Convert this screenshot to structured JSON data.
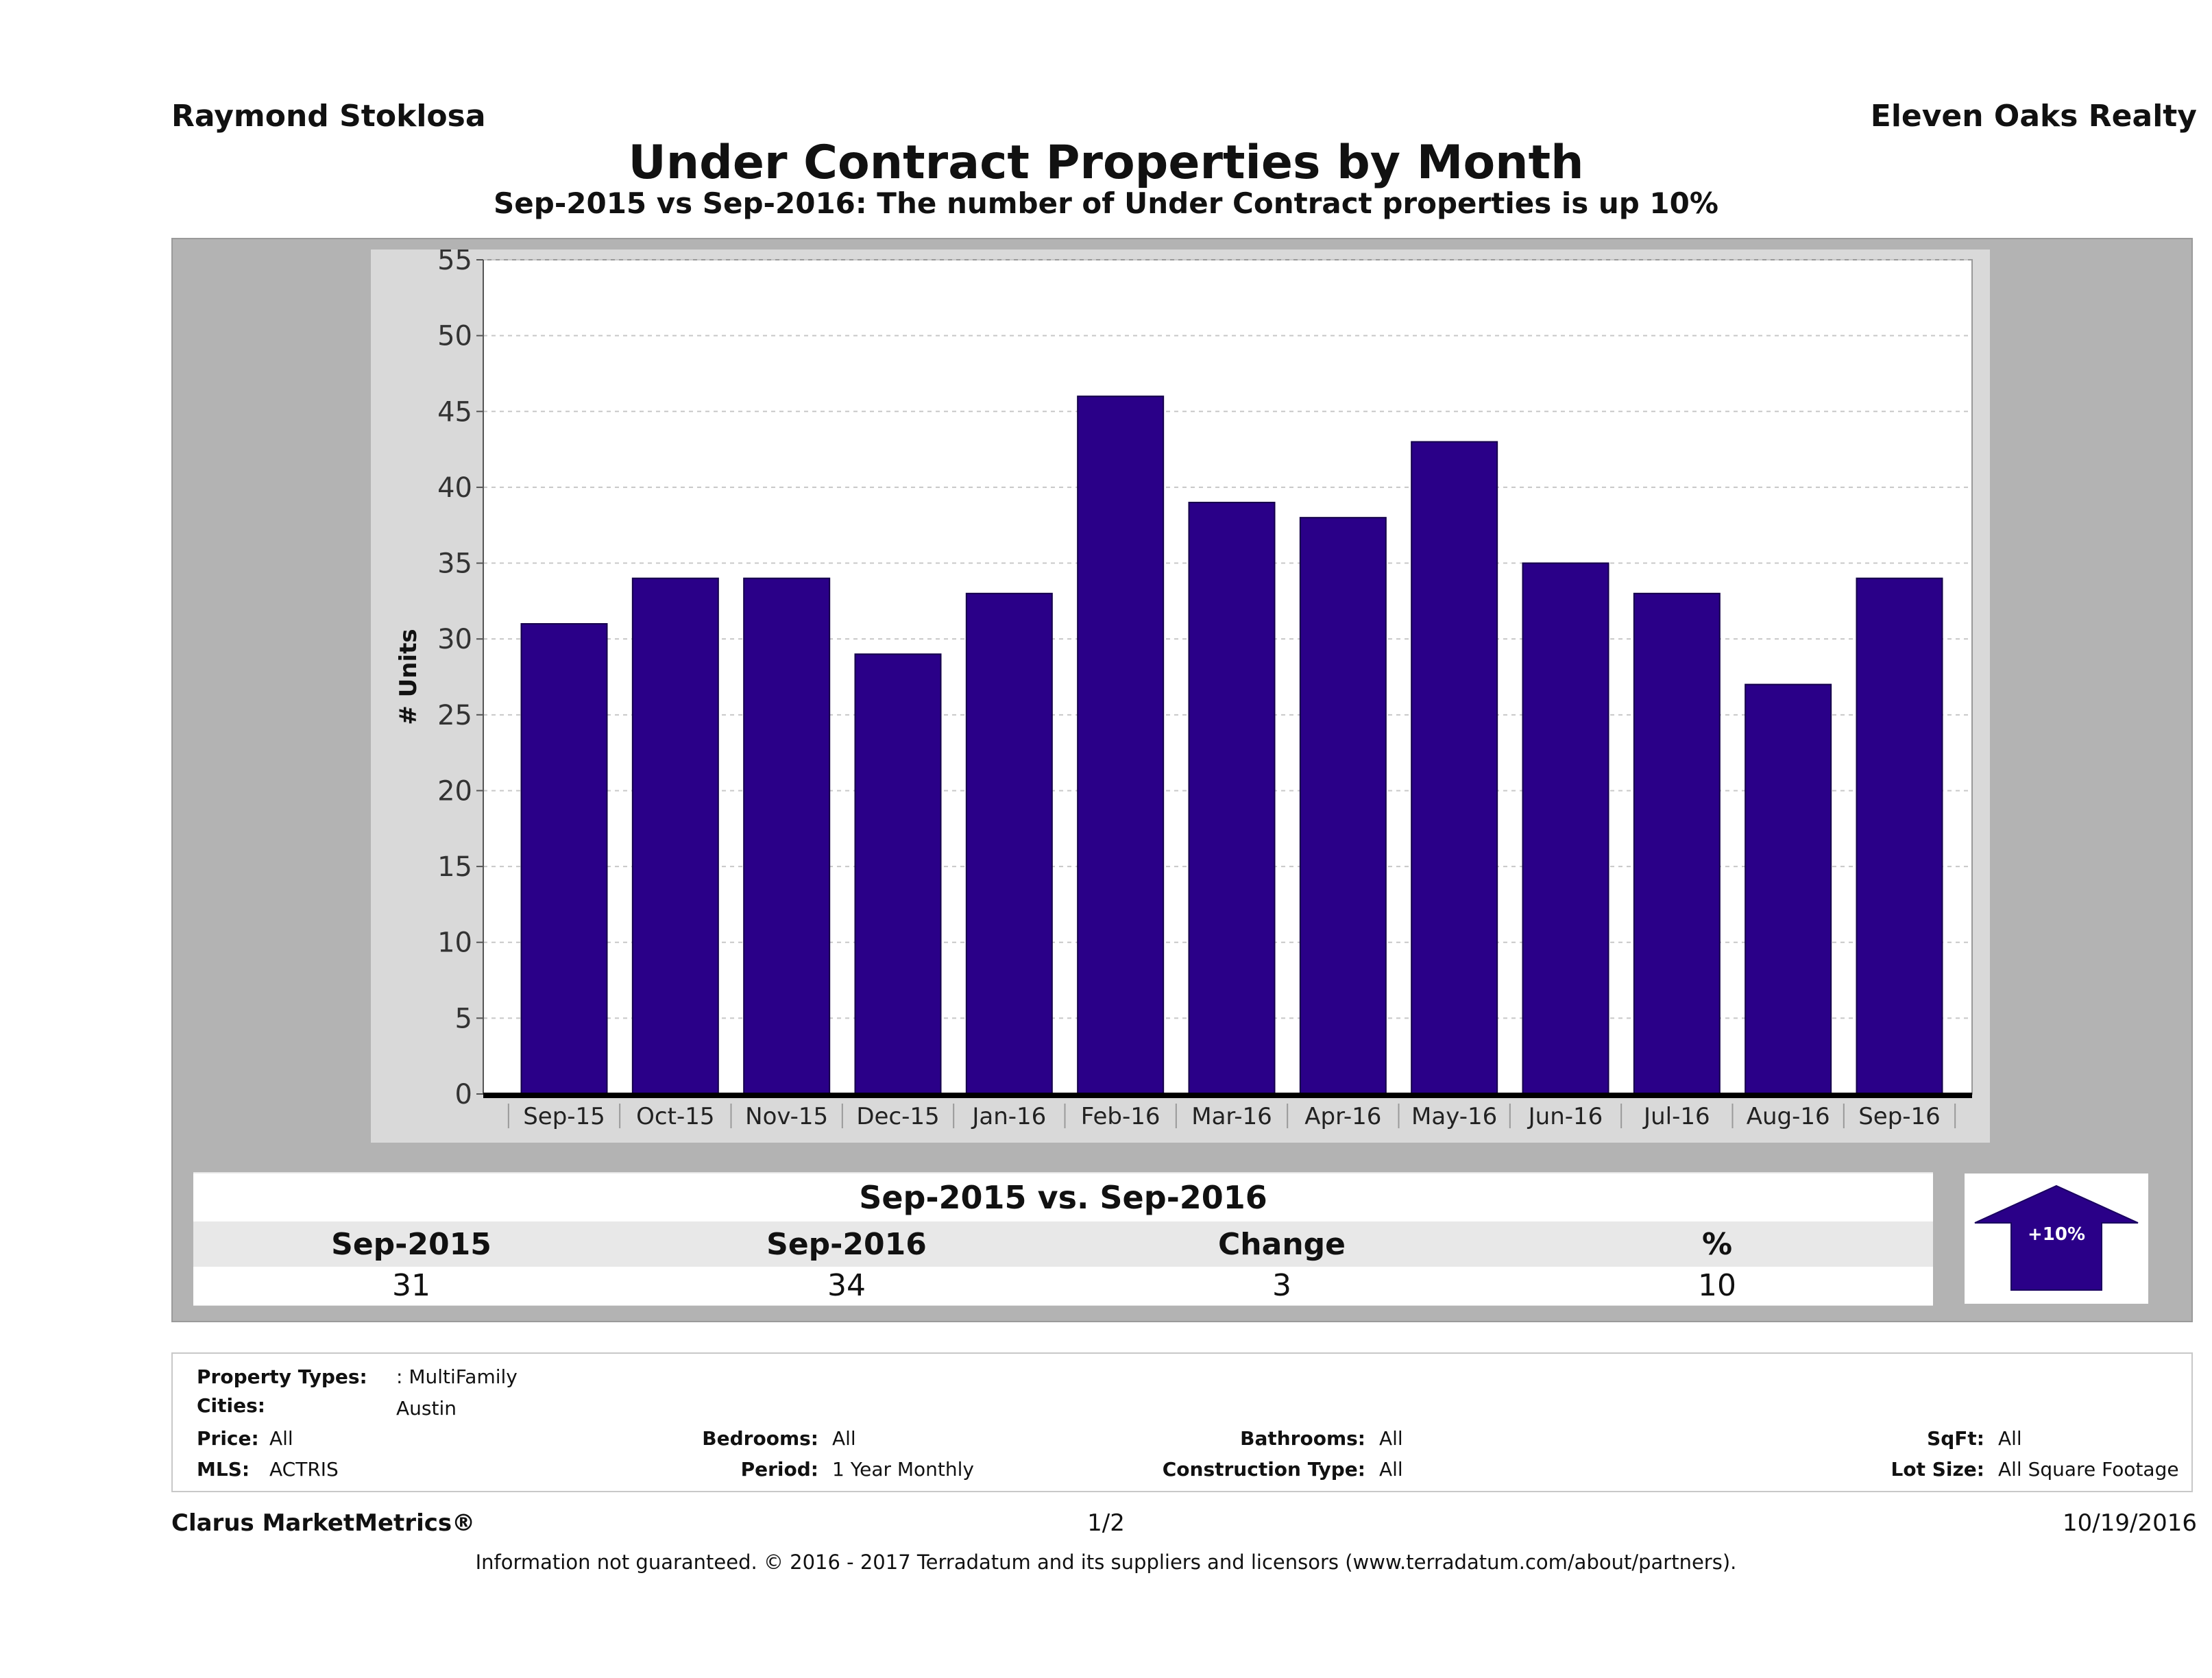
{
  "header": {
    "agent": "Raymond Stoklosa",
    "company": "Eleven Oaks Realty",
    "title": "Under Contract Properties by Month",
    "subtitle": "Sep-2015 vs Sep-2016: The number of Under Contract  properties is up 10%"
  },
  "chart_data": {
    "type": "bar",
    "title": "Under Contract Properties by Month",
    "ylabel": "# Units",
    "xlabel": "",
    "ylim": [
      0,
      55
    ],
    "yticks": [
      0,
      5,
      10,
      15,
      20,
      25,
      30,
      35,
      40,
      45,
      50,
      55
    ],
    "grid": true,
    "bar_color": "#2a0088",
    "categories": [
      "Sep-15",
      "Oct-15",
      "Nov-15",
      "Dec-15",
      "Jan-16",
      "Feb-16",
      "Mar-16",
      "Apr-16",
      "May-16",
      "Jun-16",
      "Jul-16",
      "Aug-16",
      "Sep-16"
    ],
    "values": [
      31,
      34,
      34,
      29,
      33,
      46,
      39,
      38,
      43,
      35,
      33,
      27,
      34
    ]
  },
  "comparison": {
    "title": "Sep-2015 vs. Sep-2016",
    "headers": [
      "Sep-2015",
      "Sep-2016",
      "Change",
      "%"
    ],
    "values": [
      "31",
      "34",
      "3",
      "10"
    ],
    "badge": "+10%",
    "badge_color": "#2a0088"
  },
  "filters": {
    "property_types_label": "Property Types:",
    "property_types_value": ": MultiFamily",
    "cities_label": "Cities:",
    "cities_value": "Austin",
    "price_label": "Price:",
    "price_value": "All",
    "mls_label": "MLS:",
    "mls_value": "ACTRIS",
    "bedrooms_label": "Bedrooms:",
    "bedrooms_value": "All",
    "period_label": "Period:",
    "period_value": "1 Year Monthly",
    "bathrooms_label": "Bathrooms:",
    "bathrooms_value": "All",
    "construction_label": "Construction Type:",
    "construction_value": "All",
    "sqft_label": "SqFt:",
    "sqft_value": "All",
    "lot_label": "Lot Size:",
    "lot_value": "All Square Footage"
  },
  "footer": {
    "brand": "Clarus MarketMetrics®",
    "page": "1/2",
    "date": "10/19/2016",
    "disclaimer": "Information not guaranteed. © 2016 - 2017 Terradatum and its suppliers and licensors (www.terradatum.com/about/partners)."
  }
}
